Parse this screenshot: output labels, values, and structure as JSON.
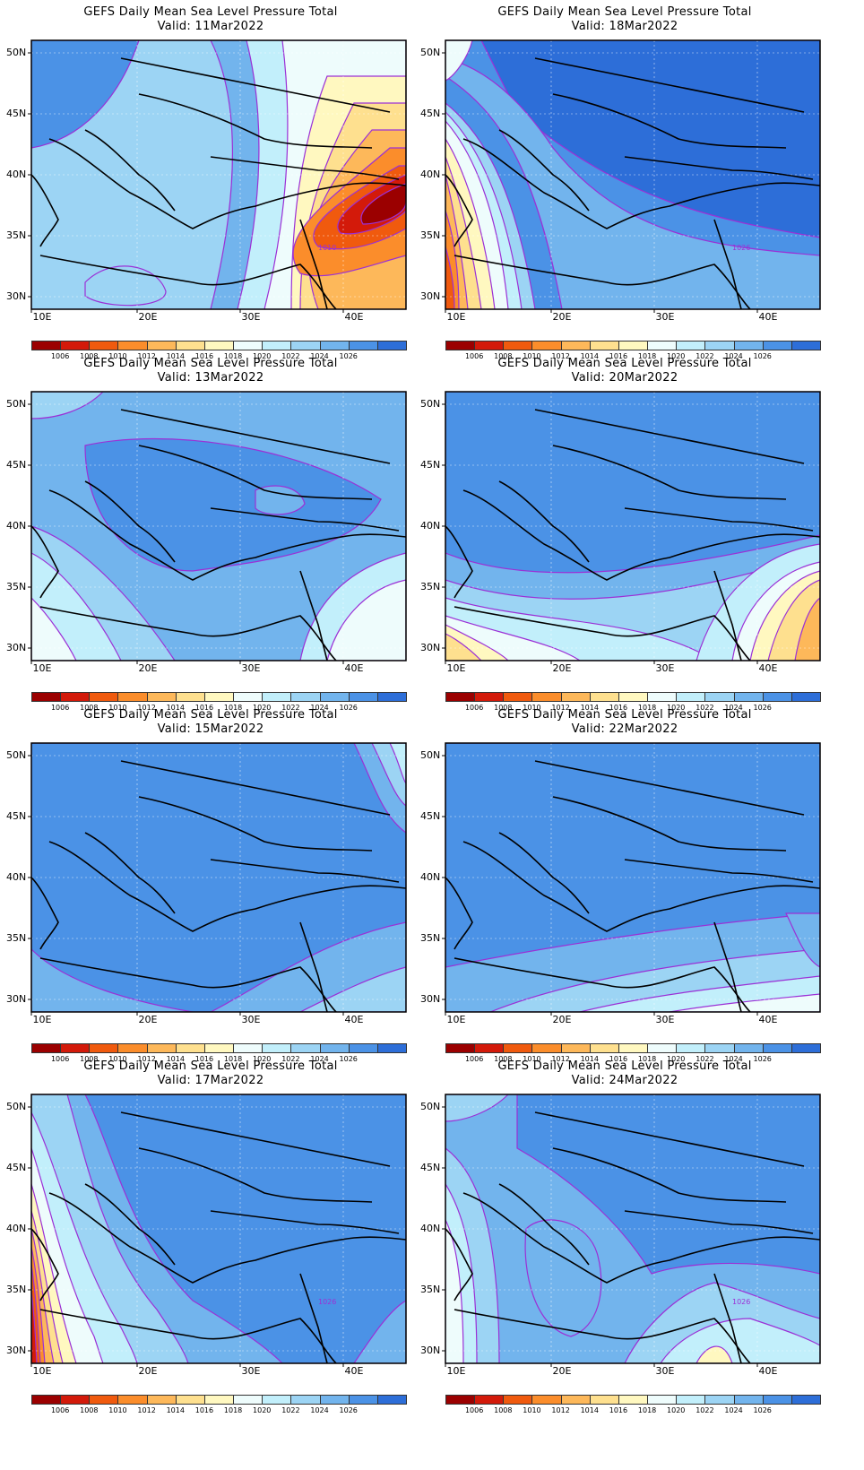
{
  "colorbar": {
    "colors": [
      "#9b0000",
      "#d31a0a",
      "#f05a0e",
      "#fb8d2b",
      "#fdb85a",
      "#fee08f",
      "#fff8c0",
      "#eefcfc",
      "#c2effb",
      "#9cd4f4",
      "#72b4ed",
      "#4b92e6",
      "#2d6ed8"
    ],
    "labels": [
      "1006",
      "1008",
      "1010",
      "1012",
      "1014",
      "1016",
      "1018",
      "1020",
      "1022",
      "1024",
      "1026"
    ]
  },
  "axes": {
    "lat_labels": [
      "50N",
      "45N",
      "40N",
      "35N",
      "30N"
    ],
    "lon_labels": [
      "10E",
      "20E",
      "30E",
      "40E"
    ]
  },
  "panels": [
    {
      "title": "GEFS Daily Mean Sea Level Pressure Total",
      "valid": "Valid: 11Mar2022",
      "contour_label": "1010",
      "style": "low-east"
    },
    {
      "title": "GEFS Daily Mean Sea Level Pressure Total",
      "valid": "Valid: 18Mar2022",
      "contour_label": "1026",
      "style": "low-southwest"
    },
    {
      "title": "GEFS Daily Mean Sea Level Pressure Total",
      "valid": "Valid: 13Mar2022",
      "contour_label": "",
      "style": "high-mild"
    },
    {
      "title": "GEFS Daily Mean Sea Level Pressure Total",
      "valid": "Valid: 20Mar2022",
      "contour_label": "",
      "style": "low-southeast"
    },
    {
      "title": "GEFS Daily Mean Sea Level Pressure Total",
      "valid": "Valid: 15Mar2022",
      "contour_label": "",
      "style": "high-strong"
    },
    {
      "title": "GEFS Daily Mean Sea Level Pressure Total",
      "valid": "Valid: 22Mar2022",
      "contour_label": "",
      "style": "high-south-gradient"
    },
    {
      "title": "GEFS Daily Mean Sea Level Pressure Total",
      "valid": "Valid: 17Mar2022",
      "contour_label": "1026",
      "style": "low-west"
    },
    {
      "title": "GEFS Daily Mean Sea Level Pressure Total",
      "valid": "Valid: 24Mar2022",
      "contour_label": "1026",
      "style": "mixed"
    }
  ]
}
